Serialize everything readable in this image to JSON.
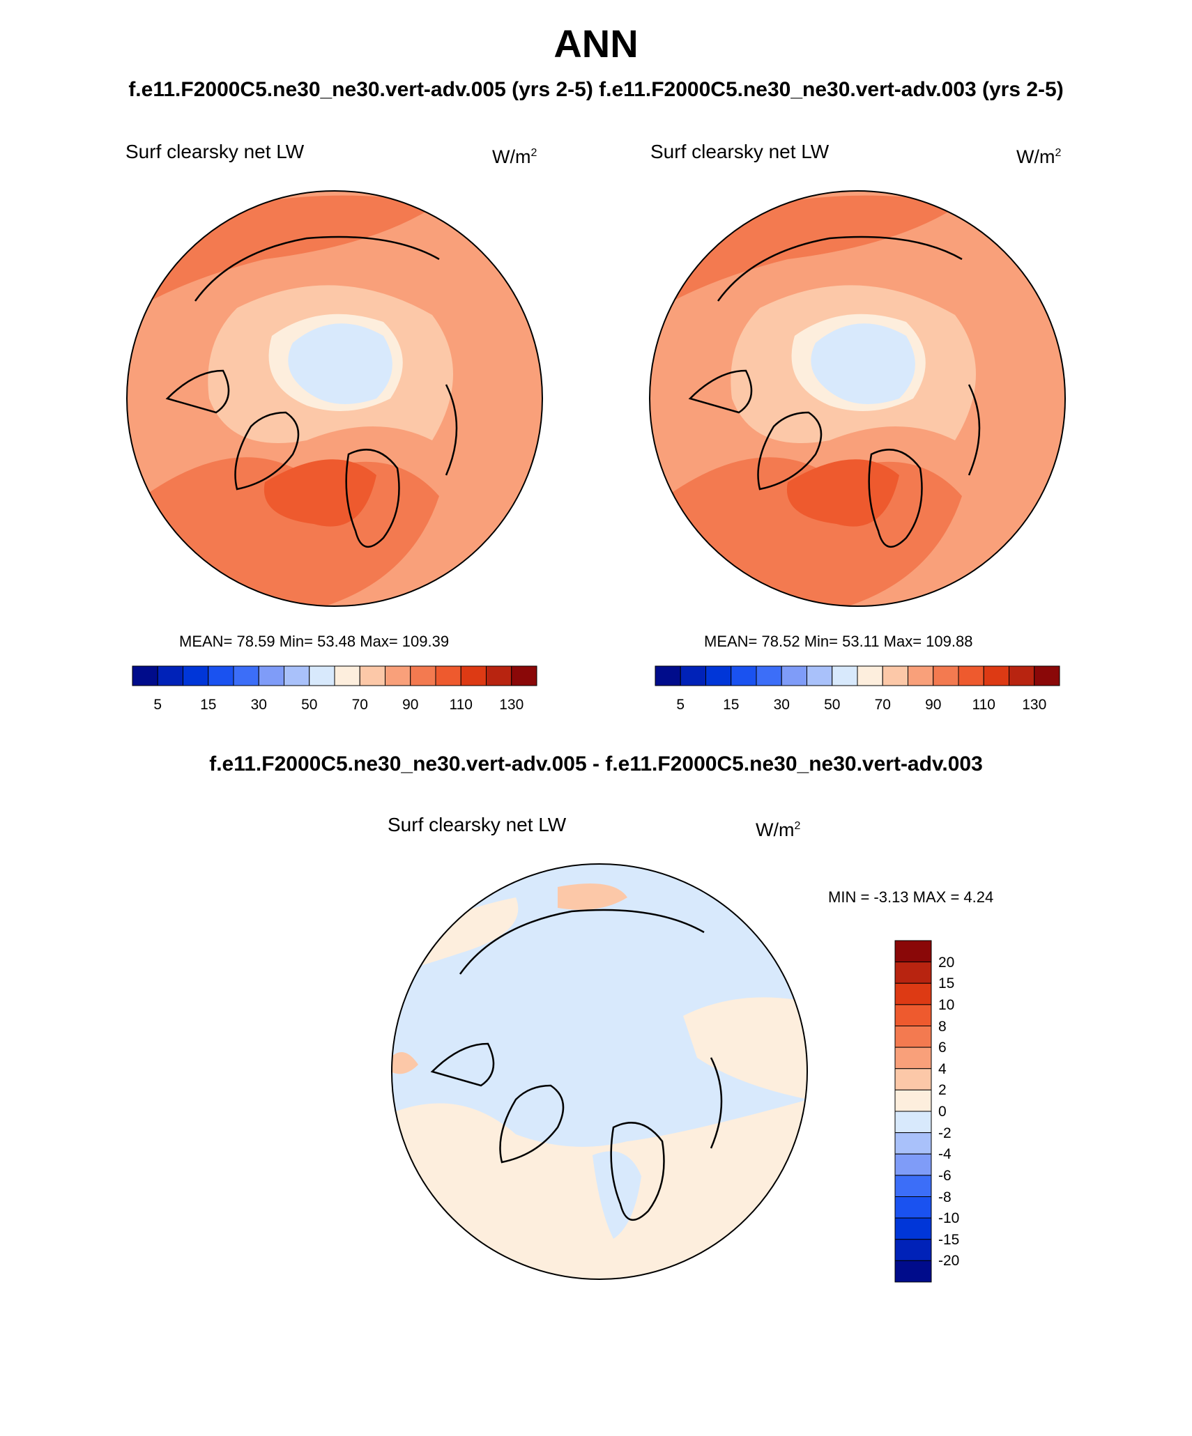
{
  "header": {
    "season": "ANN",
    "subtitle": "f.e11.F2000C5.ne30_ne30.vert-adv.005 (yrs 2-5) f.e11.F2000C5.ne30_ne30.vert-adv.003 (yrs 2-5)"
  },
  "panels": [
    {
      "variable": "Surf clearsky net LW",
      "units_base": "W/m",
      "units_exp": "2",
      "stats": "MEAN=  78.59  Min=  53.48  Max= 109.39"
    },
    {
      "variable": "Surf clearsky net LW",
      "units_base": "W/m",
      "units_exp": "2",
      "stats": "MEAN=  78.52  Min=  53.11  Max= 109.88"
    }
  ],
  "difference": {
    "title": "f.e11.F2000C5.ne30_ne30.vert-adv.005 - f.e11.F2000C5.ne30_ne30.vert-adv.003",
    "variable": "Surf clearsky net LW",
    "units_base": "W/m",
    "units_exp": "2",
    "minmax": "MIN =  -3.13 MAX =   4.24"
  },
  "colorbar_main": {
    "colors": [
      "#000c8b",
      "#0022b8",
      "#0036d8",
      "#1a52f0",
      "#3c6ef8",
      "#7f9cf8",
      "#a9c1fa",
      "#d8e9fc",
      "#fdeedd",
      "#fcc8a8",
      "#f9a07a",
      "#f37a50",
      "#ee5a2e",
      "#dd3a14",
      "#b82410",
      "#8a0808"
    ],
    "labels": [
      "5",
      "15",
      "30",
      "50",
      "70",
      "90",
      "110",
      "130"
    ]
  },
  "colorbar_diff": {
    "colors": [
      "#8a0808",
      "#b82410",
      "#dd3a14",
      "#ee5a2e",
      "#f37a50",
      "#f9a07a",
      "#fcc8a8",
      "#fdeedd",
      "#d8e9fc",
      "#a9c1fa",
      "#7f9cf8",
      "#3c6ef8",
      "#1a52f0",
      "#0036d8",
      "#0022b8",
      "#000c8b"
    ],
    "labels": [
      "20",
      "15",
      "10",
      "8",
      "6",
      "4",
      "2",
      "0",
      "-2",
      "-4",
      "-6",
      "-8",
      "-10",
      "-15",
      "-20"
    ]
  }
}
